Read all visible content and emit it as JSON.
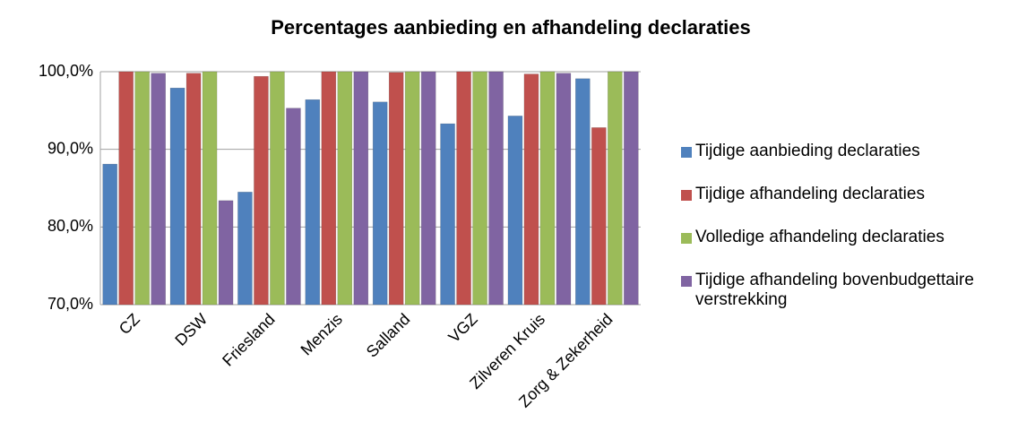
{
  "chart_data": {
    "type": "bar",
    "title": "Percentages aanbieding en afhandeling declaraties",
    "categories": [
      "CZ",
      "DSW",
      "Friesland",
      "Menzis",
      "Salland",
      "VGZ",
      "Zilveren Kruis",
      "Zorg & Zekerheid"
    ],
    "series": [
      {
        "name": "Tijdige aanbieding declaraties",
        "color": "#4f81bd",
        "values": [
          88.1,
          97.9,
          84.5,
          96.4,
          96.1,
          93.3,
          94.3,
          99.1
        ]
      },
      {
        "name": "Tijdige afhandeling declaraties",
        "color": "#c0504d",
        "values": [
          100,
          99.8,
          99.4,
          100,
          99.9,
          100,
          99.7,
          92.8
        ]
      },
      {
        "name": "Volledige afhandeling declaraties",
        "color": "#9bbb59",
        "values": [
          100,
          100,
          100,
          100,
          100,
          100,
          100,
          100
        ]
      },
      {
        "name": "Tijdige afhandeling bovenbudgettaire verstrekking",
        "color": "#8064a2",
        "values": [
          99.8,
          83.4,
          95.3,
          100,
          100,
          100,
          99.8,
          100
        ]
      }
    ],
    "ylim": [
      70,
      100
    ],
    "yticks": [
      {
        "value": 70,
        "label": "70,0%"
      },
      {
        "value": 80,
        "label": "80,0%"
      },
      {
        "value": 90,
        "label": "90,0%"
      },
      {
        "value": 100,
        "label": "100,0%"
      }
    ],
    "grid": true,
    "legend": "right"
  }
}
